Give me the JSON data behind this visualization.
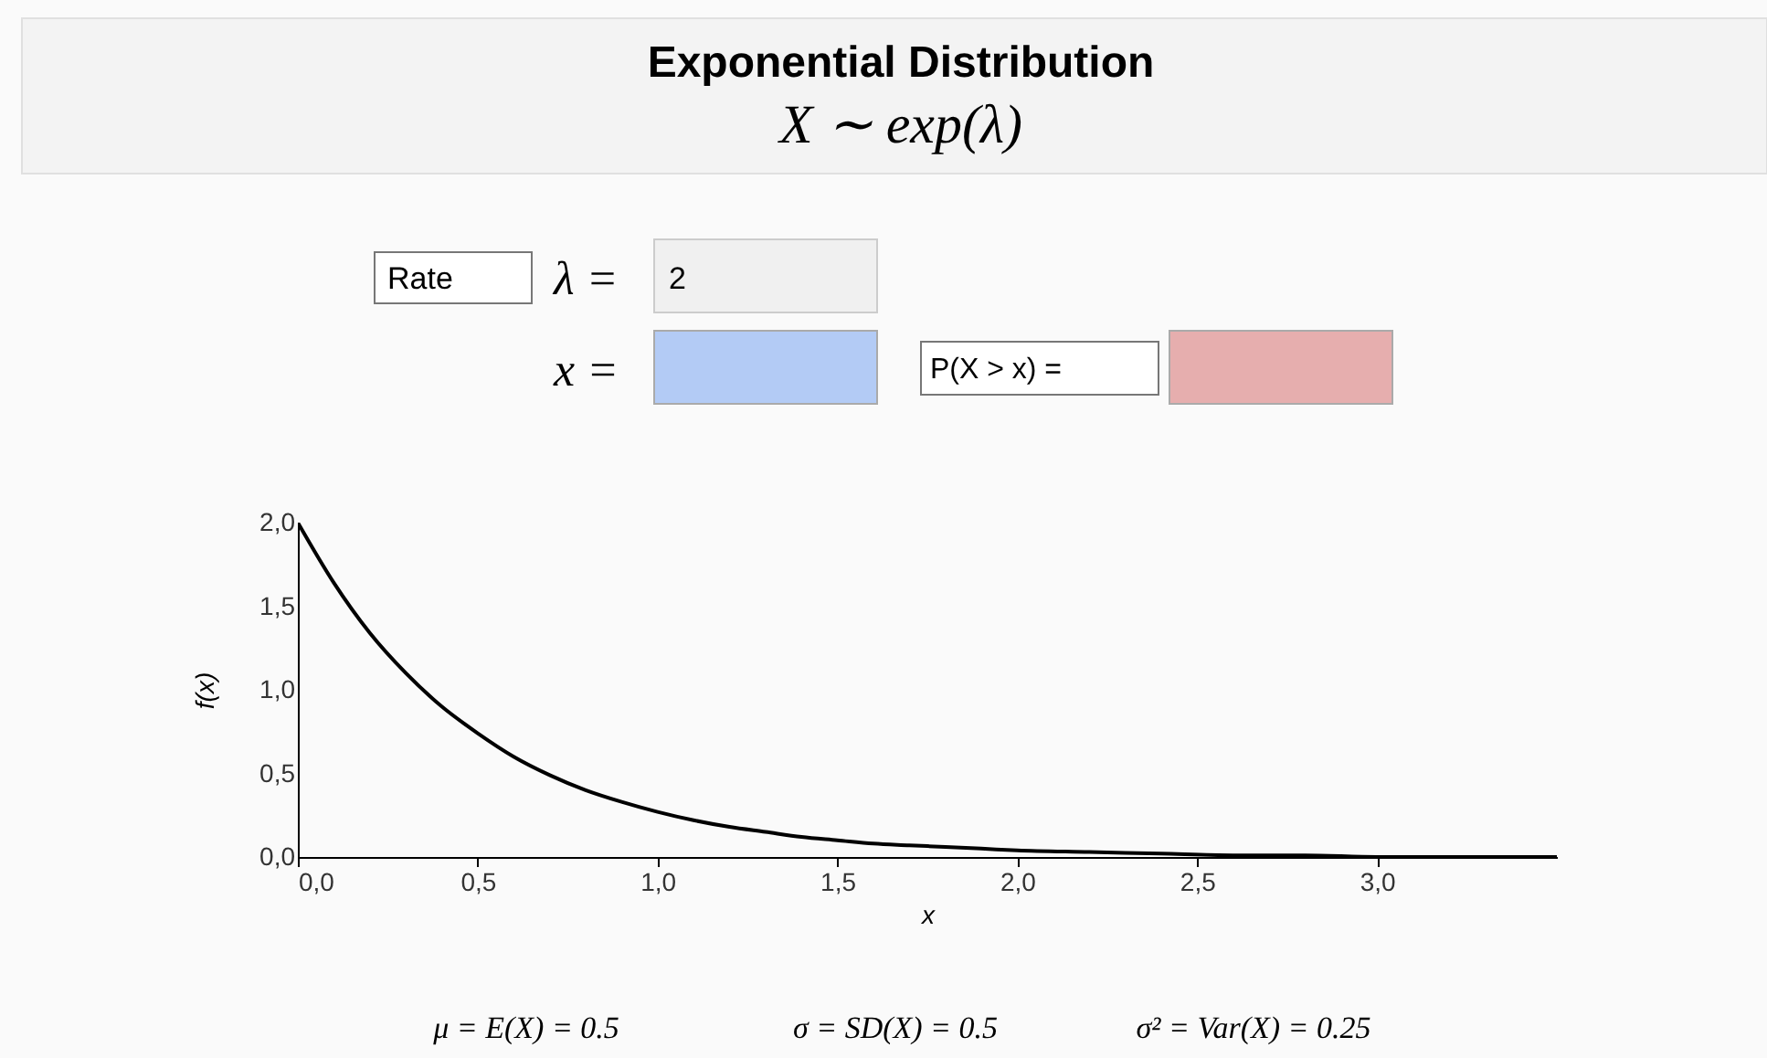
{
  "chart_data": {
    "type": "line",
    "title": "Exponential Distribution",
    "subtitle": "X ∼ exp(λ)",
    "xlabel": "x",
    "ylabel": "f(x)",
    "x": [
      0,
      0.1,
      0.2,
      0.3,
      0.4,
      0.5,
      0.6,
      0.7,
      0.8,
      0.9,
      1.0,
      1.1,
      1.2,
      1.3,
      1.4,
      1.5,
      1.6,
      1.7,
      1.8,
      1.9,
      2.0,
      2.2,
      2.4,
      2.6,
      2.8,
      3.0,
      3.2,
      3.5
    ],
    "series": [
      {
        "color": "#000000",
        "values": [
          2.0,
          1.64,
          1.34,
          1.1,
          0.9,
          0.74,
          0.6,
          0.49,
          0.4,
          0.33,
          0.27,
          0.22,
          0.18,
          0.15,
          0.12,
          0.1,
          0.08,
          0.07,
          0.06,
          0.05,
          0.04,
          0.03,
          0.02,
          0.01,
          0.01,
          0.0,
          0.0,
          0.0
        ]
      }
    ],
    "xlim": [
      0,
      3.5
    ],
    "ylim": [
      0,
      2.0
    ],
    "xticks": [
      {
        "value": 0,
        "label": "0,0"
      },
      {
        "value": 0.5,
        "label": "0,5"
      },
      {
        "value": 1.0,
        "label": "1,0"
      },
      {
        "value": 1.5,
        "label": "1,5"
      },
      {
        "value": 2.0,
        "label": "2,0"
      },
      {
        "value": 2.5,
        "label": "2,5"
      },
      {
        "value": 3.0,
        "label": "3,0"
      }
    ],
    "yticks": [
      {
        "value": 0,
        "label": "0,0"
      },
      {
        "value": 0.5,
        "label": "0,5"
      },
      {
        "value": 1.0,
        "label": "1,0"
      },
      {
        "value": 1.5,
        "label": "1,5"
      },
      {
        "value": 2.0,
        "label": "2,0"
      }
    ],
    "grid": false,
    "marker": "none",
    "line_style": "solid",
    "annotations": [
      "Rate",
      "λ =",
      "2",
      "x =",
      "P(X > x) =",
      "μ = E(X) = 0.5",
      "σ = SD(X) = 0.5",
      "σ² = Var(X) = 0.25"
    ]
  }
}
